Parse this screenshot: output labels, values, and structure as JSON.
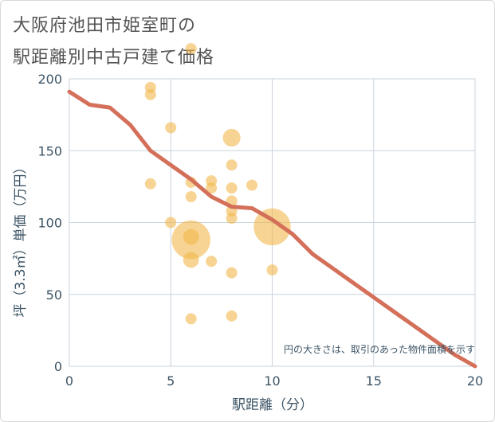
{
  "title": {
    "line1": "大阪府池田市姫室町の",
    "line2": "駅距離別中古戸建て価格"
  },
  "colors": {
    "line": "#d4705a",
    "bubble": "#f2b84b",
    "grid": "#c9d3dd",
    "axis_text": "#3d5566"
  },
  "chart_data": {
    "type": "scatter",
    "title": "大阪府池田市姫室町の駅距離別中古戸建て価格",
    "xlabel": "駅距離（分）",
    "ylabel": "坪（3.3㎡）単価（万円）",
    "xlim": [
      0,
      20
    ],
    "ylim": [
      0,
      200
    ],
    "x_ticks": [
      0,
      5,
      10,
      15,
      20
    ],
    "y_ticks": [
      0,
      50,
      100,
      150,
      200
    ],
    "note": "円の大きさは、取引のあった物件面積を示す",
    "points": [
      {
        "x": 4,
        "y": 194,
        "size": 1
      },
      {
        "x": 4,
        "y": 189,
        "size": 1
      },
      {
        "x": 4,
        "y": 127,
        "size": 1
      },
      {
        "x": 5,
        "y": 166,
        "size": 1
      },
      {
        "x": 5,
        "y": 100,
        "size": 1
      },
      {
        "x": 6,
        "y": 221,
        "size": 1
      },
      {
        "x": 6,
        "y": 128,
        "size": 1
      },
      {
        "x": 6,
        "y": 118,
        "size": 1
      },
      {
        "x": 6,
        "y": 88,
        "size": 12
      },
      {
        "x": 6,
        "y": 90,
        "size": 2
      },
      {
        "x": 6,
        "y": 74,
        "size": 2
      },
      {
        "x": 6,
        "y": 33,
        "size": 1
      },
      {
        "x": 7,
        "y": 129,
        "size": 1
      },
      {
        "x": 7,
        "y": 124,
        "size": 1
      },
      {
        "x": 7,
        "y": 73,
        "size": 1
      },
      {
        "x": 8,
        "y": 159,
        "size": 2.5
      },
      {
        "x": 8,
        "y": 140,
        "size": 1
      },
      {
        "x": 8,
        "y": 124,
        "size": 1
      },
      {
        "x": 8,
        "y": 115,
        "size": 1
      },
      {
        "x": 8,
        "y": 108,
        "size": 1
      },
      {
        "x": 8,
        "y": 103,
        "size": 1
      },
      {
        "x": 8,
        "y": 65,
        "size": 1
      },
      {
        "x": 8,
        "y": 35,
        "size": 1
      },
      {
        "x": 9,
        "y": 126,
        "size": 1
      },
      {
        "x": 10,
        "y": 97,
        "size": 11
      },
      {
        "x": 10,
        "y": 67,
        "size": 1
      }
    ],
    "series": [
      {
        "name": "trend",
        "type": "line",
        "x": [
          0,
          1,
          2,
          3,
          4,
          5,
          6,
          7,
          8,
          9,
          10,
          11,
          12,
          13,
          14,
          15,
          16,
          17,
          18,
          19,
          20
        ],
        "y": [
          191,
          182,
          180,
          168,
          150,
          140,
          130,
          118,
          111,
          110,
          102,
          92,
          78,
          68,
          58,
          48,
          38,
          28,
          18,
          8,
          0
        ]
      }
    ]
  }
}
